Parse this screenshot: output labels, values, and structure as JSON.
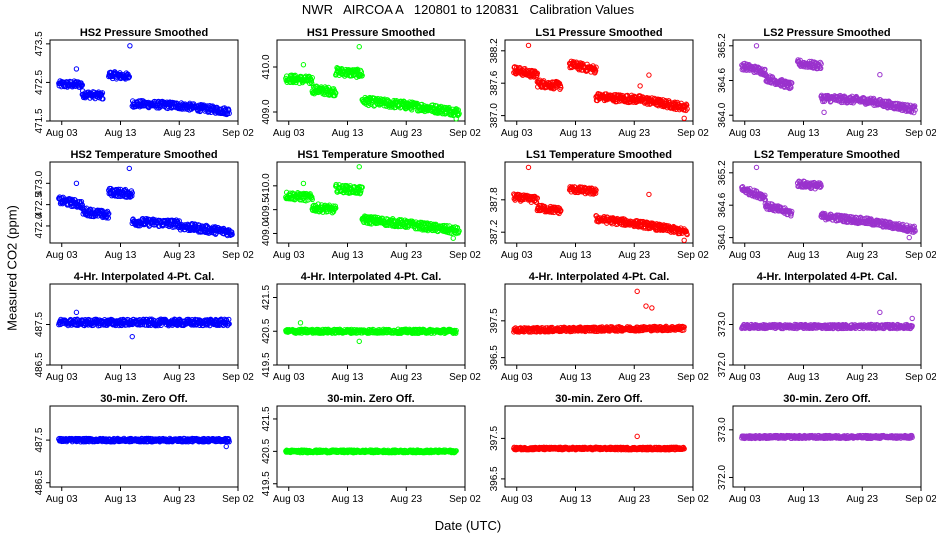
{
  "title": "NWR   AIRCOA A   120801 to 120831   Calibration Values",
  "ylabel": "Measured CO2 (ppm)",
  "xlabel": "Date (UTC)",
  "chart_data": [
    {
      "type": "scatter",
      "title": "HS2 Pressure Smoothed",
      "color": "#0000ff",
      "ylim": [
        471.5,
        473.6
      ],
      "yticks": [
        "471.5",
        "472.5",
        "473.5"
      ],
      "xticks": [
        "Aug 03",
        "Aug 13",
        "Aug 23",
        "Sep 02"
      ],
      "xlim": [
        0,
        32
      ],
      "segments": [
        [
          1.5,
          5.5,
          472.45,
          472.45
        ],
        [
          5.5,
          9.0,
          472.2,
          472.15
        ],
        [
          10.0,
          13.5,
          472.7,
          472.65
        ],
        [
          14.0,
          22.0,
          471.95,
          471.9
        ],
        [
          22.0,
          30.5,
          471.9,
          471.75
        ]
      ],
      "noise": 0.09,
      "outliers": [
        [
          13.6,
          473.45
        ],
        [
          4.5,
          472.85
        ]
      ]
    },
    {
      "type": "scatter",
      "title": "HS1 Pressure Smoothed",
      "color": "#00ff00",
      "ylim": [
        408.8,
        410.6
      ],
      "yticks": [
        "409.0",
        "410.0"
      ],
      "xticks": [
        "Aug 03",
        "Aug 13",
        "Aug 23",
        "Sep 02"
      ],
      "xlim": [
        0,
        32
      ],
      "segments": [
        [
          1.5,
          6.0,
          409.75,
          409.7
        ],
        [
          6.0,
          10.0,
          409.5,
          409.45
        ],
        [
          10.0,
          14.5,
          409.9,
          409.85
        ],
        [
          14.5,
          22.0,
          409.25,
          409.15
        ],
        [
          22.0,
          31.0,
          409.15,
          409.0
        ]
      ],
      "noise": 0.09,
      "outliers": [
        [
          14.0,
          410.45
        ],
        [
          4.5,
          410.05
        ],
        [
          30.5,
          408.85
        ]
      ]
    },
    {
      "type": "scatter",
      "title": "LS1 Pressure Smoothed",
      "color": "#ff0000",
      "ylim": [
        386.9,
        388.4
      ],
      "yticks": [
        "387.0",
        "387.6",
        "388.2"
      ],
      "xticks": [
        "Aug 03",
        "Aug 13",
        "Aug 23",
        "Sep 02"
      ],
      "xlim": [
        0,
        32
      ],
      "segments": [
        [
          1.5,
          5.5,
          387.85,
          387.75
        ],
        [
          5.5,
          9.5,
          387.6,
          387.55
        ],
        [
          11.0,
          15.5,
          387.95,
          387.85
        ],
        [
          15.5,
          23.0,
          387.35,
          387.3
        ],
        [
          23.0,
          31.0,
          387.3,
          387.15
        ]
      ],
      "noise": 0.07,
      "outliers": [
        [
          4.0,
          388.3
        ],
        [
          24.5,
          387.75
        ],
        [
          23.0,
          387.55
        ],
        [
          30.5,
          386.95
        ]
      ]
    },
    {
      "type": "scatter",
      "title": "LS2 Pressure Smoothed",
      "color": "#9a32cd",
      "ylim": [
        363.9,
        365.3
      ],
      "yticks": [
        "364.0",
        "364.6",
        "365.2"
      ],
      "xticks": [
        "Aug 03",
        "Aug 13",
        "Aug 23",
        "Sep 02"
      ],
      "xlim": [
        0,
        32
      ],
      "segments": [
        [
          1.5,
          5.5,
          364.85,
          364.75
        ],
        [
          5.5,
          10.0,
          364.65,
          364.5
        ],
        [
          11.0,
          15.0,
          364.9,
          364.85
        ],
        [
          15.0,
          23.0,
          364.3,
          364.25
        ],
        [
          23.0,
          31.0,
          364.25,
          364.1
        ]
      ],
      "noise": 0.06,
      "outliers": [
        [
          4.0,
          365.2
        ],
        [
          25.0,
          364.7
        ],
        [
          15.5,
          364.05
        ]
      ]
    },
    {
      "type": "scatter",
      "title": "HS2 Temperature Smoothed",
      "color": "#0000ff",
      "ylim": [
        471.6,
        473.5
      ],
      "yticks": [
        "472.0",
        "472.5",
        "473.0"
      ],
      "xticks": [
        "Aug 03",
        "Aug 13",
        "Aug 23",
        "Sep 02"
      ],
      "xlim": [
        0,
        32
      ],
      "segments": [
        [
          1.5,
          5.5,
          472.6,
          472.5
        ],
        [
          5.5,
          10.0,
          472.35,
          472.25
        ],
        [
          10.0,
          14.0,
          472.8,
          472.75
        ],
        [
          14.0,
          22.0,
          472.1,
          472.05
        ],
        [
          22.0,
          31.0,
          472.0,
          471.85
        ]
      ],
      "noise": 0.09,
      "outliers": [
        [
          13.5,
          473.35
        ],
        [
          4.5,
          473.0
        ]
      ]
    },
    {
      "type": "scatter",
      "title": "HS1 Temperature Smoothed",
      "color": "#00ff00",
      "ylim": [
        408.8,
        410.5
      ],
      "yticks": [
        "409.0",
        "409.5",
        "410.0"
      ],
      "xticks": [
        "Aug 03",
        "Aug 13",
        "Aug 23",
        "Sep 02"
      ],
      "xlim": [
        0,
        32
      ],
      "segments": [
        [
          1.5,
          6.0,
          409.8,
          409.75
        ],
        [
          6.0,
          10.0,
          409.55,
          409.5
        ],
        [
          10.0,
          14.5,
          409.95,
          409.9
        ],
        [
          14.5,
          22.0,
          409.3,
          409.2
        ],
        [
          22.0,
          31.0,
          409.2,
          409.05
        ]
      ],
      "noise": 0.08,
      "outliers": [
        [
          14.0,
          410.4
        ],
        [
          4.5,
          410.05
        ],
        [
          30.0,
          408.9
        ]
      ]
    },
    {
      "type": "scatter",
      "title": "LS1 Temperature Smoothed",
      "color": "#ff0000",
      "ylim": [
        387.0,
        388.5
      ],
      "yticks": [
        "387.2",
        "387.8"
      ],
      "xticks": [
        "Aug 03",
        "Aug 13",
        "Aug 23",
        "Sep 02"
      ],
      "xlim": [
        0,
        32
      ],
      "segments": [
        [
          1.5,
          5.5,
          387.85,
          387.8
        ],
        [
          5.5,
          9.5,
          387.65,
          387.6
        ],
        [
          11.0,
          15.5,
          388.0,
          387.95
        ],
        [
          15.5,
          23.0,
          387.45,
          387.35
        ],
        [
          23.0,
          31.0,
          387.35,
          387.2
        ]
      ],
      "noise": 0.06,
      "outliers": [
        [
          4.0,
          388.4
        ],
        [
          24.5,
          387.9
        ],
        [
          30.5,
          387.05
        ]
      ]
    },
    {
      "type": "scatter",
      "title": "LS2 Temperature Smoothed",
      "color": "#9a32cd",
      "ylim": [
        363.9,
        365.4
      ],
      "yticks": [
        "364.0",
        "364.6",
        "365.2"
      ],
      "xticks": [
        "Aug 03",
        "Aug 13",
        "Aug 23",
        "Sep 02"
      ],
      "xlim": [
        0,
        32
      ],
      "segments": [
        [
          1.5,
          5.5,
          364.9,
          364.75
        ],
        [
          5.5,
          10.0,
          364.6,
          364.45
        ],
        [
          11.0,
          15.0,
          365.0,
          364.95
        ],
        [
          15.0,
          23.0,
          364.4,
          364.3
        ],
        [
          23.0,
          31.0,
          364.3,
          364.15
        ]
      ],
      "noise": 0.06,
      "outliers": [
        [
          4.0,
          365.3
        ],
        [
          30.0,
          364.0
        ]
      ]
    },
    {
      "type": "scatter",
      "title": "4-Hr. Interpolated 4-Pt. Cal.",
      "color": "#0000ff",
      "ylim": [
        486.5,
        488.5
      ],
      "yticks": [
        "486.5",
        "487.5"
      ],
      "xticks": [
        "Aug 03",
        "Aug 13",
        "Aug 23",
        "Sep 02"
      ],
      "xlim": [
        0,
        32
      ],
      "segments": [
        [
          1.5,
          30.5,
          487.55,
          487.55
        ]
      ],
      "noise": 0.08,
      "outliers": [
        [
          4.5,
          487.8
        ],
        [
          14.0,
          487.2
        ]
      ]
    },
    {
      "type": "scatter",
      "title": "4-Hr. Interpolated 4-Pt. Cal.",
      "color": "#00ff00",
      "ylim": [
        419.5,
        421.9
      ],
      "yticks": [
        "419.5",
        "420.5",
        "421.5"
      ],
      "xticks": [
        "Aug 03",
        "Aug 13",
        "Aug 23",
        "Sep 02"
      ],
      "xlim": [
        0,
        32
      ],
      "segments": [
        [
          1.5,
          30.5,
          420.5,
          420.5
        ]
      ],
      "noise": 0.06,
      "outliers": [
        [
          14.0,
          420.2
        ],
        [
          4.0,
          420.75
        ]
      ]
    },
    {
      "type": "scatter",
      "title": "4-Hr. Interpolated 4-Pt. Cal.",
      "color": "#ff0000",
      "ylim": [
        396.3,
        398.5
      ],
      "yticks": [
        "396.5",
        "397.5"
      ],
      "xticks": [
        "Aug 03",
        "Aug 13",
        "Aug 23",
        "Sep 02"
      ],
      "xlim": [
        0,
        32
      ],
      "segments": [
        [
          1.5,
          30.5,
          397.25,
          397.3
        ]
      ],
      "noise": 0.06,
      "outliers": [
        [
          22.5,
          398.3
        ],
        [
          24.0,
          397.9
        ],
        [
          25.0,
          397.85
        ]
      ]
    },
    {
      "type": "scatter",
      "title": "4-Hr. Interpolated 4-Pt. Cal.",
      "color": "#9a32cd",
      "ylim": [
        372.0,
        374.0
      ],
      "yticks": [
        "372.0",
        "373.0"
      ],
      "xticks": [
        "Aug 03",
        "Aug 13",
        "Aug 23",
        "Sep 02"
      ],
      "xlim": [
        0,
        32
      ],
      "segments": [
        [
          1.5,
          30.5,
          372.95,
          372.95
        ]
      ],
      "noise": 0.05,
      "outliers": [
        [
          25.0,
          373.3
        ],
        [
          30.5,
          373.15
        ]
      ]
    },
    {
      "type": "scatter",
      "title": "30-min. Zero Off.",
      "color": "#0000ff",
      "ylim": [
        486.4,
        488.3
      ],
      "yticks": [
        "486.5",
        "487.5"
      ],
      "xticks": [
        "Aug 03",
        "Aug 13",
        "Aug 23",
        "Sep 02"
      ],
      "xlim": [
        0,
        32
      ],
      "segments": [
        [
          1.5,
          30.5,
          487.5,
          487.5
        ]
      ],
      "noise": 0.04,
      "outliers": [
        [
          30.0,
          487.35
        ]
      ]
    },
    {
      "type": "scatter",
      "title": "30-min. Zero Off.",
      "color": "#00ff00",
      "ylim": [
        419.4,
        421.9
      ],
      "yticks": [
        "419.5",
        "420.5",
        "421.5"
      ],
      "xticks": [
        "Aug 03",
        "Aug 13",
        "Aug 23",
        "Sep 02"
      ],
      "xlim": [
        0,
        32
      ],
      "segments": [
        [
          1.5,
          30.5,
          420.5,
          420.5
        ]
      ],
      "noise": 0.04,
      "outliers": []
    },
    {
      "type": "scatter",
      "title": "30-min. Zero Off.",
      "color": "#ff0000",
      "ylim": [
        396.3,
        398.3
      ],
      "yticks": [
        "396.5",
        "397.5"
      ],
      "xticks": [
        "Aug 03",
        "Aug 13",
        "Aug 23",
        "Sep 02"
      ],
      "xlim": [
        0,
        32
      ],
      "segments": [
        [
          1.5,
          30.5,
          397.25,
          397.25
        ]
      ],
      "noise": 0.03,
      "outliers": [
        [
          22.5,
          397.55
        ]
      ]
    },
    {
      "type": "scatter",
      "title": "30-min. Zero Off.",
      "color": "#9a32cd",
      "ylim": [
        371.8,
        373.5
      ],
      "yticks": [
        "372.0",
        "373.0"
      ],
      "xticks": [
        "Aug 03",
        "Aug 13",
        "Aug 23",
        "Sep 02"
      ],
      "xlim": [
        0,
        32
      ],
      "segments": [
        [
          1.5,
          30.5,
          372.85,
          372.85
        ]
      ],
      "noise": 0.03,
      "outliers": []
    }
  ]
}
